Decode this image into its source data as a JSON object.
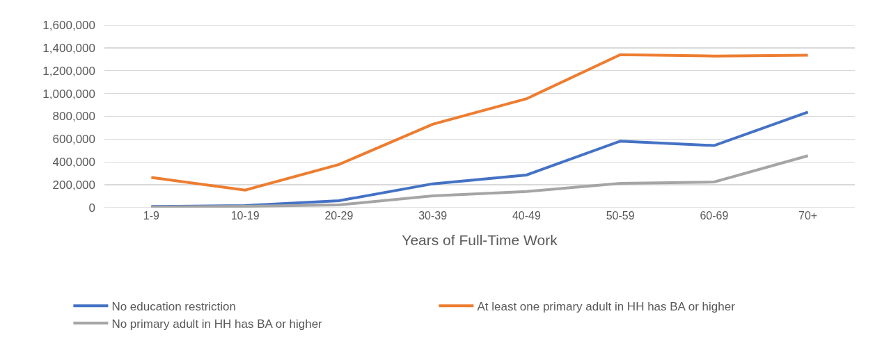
{
  "chart_data": {
    "type": "line",
    "xlabel": "Years of Full-Time Work",
    "categories": [
      "1-9",
      "10-19",
      "20-29",
      "30-39",
      "40-49",
      "50-59",
      "60-69",
      "70+"
    ],
    "series": [
      {
        "name": "No education restriction",
        "color": "#4472c4",
        "values": [
          10000,
          18000,
          61000,
          209000,
          286000,
          583000,
          544000,
          837000
        ]
      },
      {
        "name": "At least one primary adult in HH has BA or higher",
        "color": "#ed7d31",
        "values": [
          265000,
          154000,
          378000,
          731000,
          954000,
          1340000,
          1328000,
          1336000
        ]
      },
      {
        "name": "No primary adult in HH has BA or higher",
        "color": "#a5a5a5",
        "values": [
          5000,
          12000,
          24000,
          104000,
          142000,
          213000,
          225000,
          455000
        ]
      }
    ],
    "ylim": [
      0,
      1600000
    ],
    "yticks": [
      {
        "value": 0,
        "label": "0"
      },
      {
        "value": 200000,
        "label": "200,000"
      },
      {
        "value": 400000,
        "label": "400,000"
      },
      {
        "value": 600000,
        "label": "600,000"
      },
      {
        "value": 800000,
        "label": "800,000"
      },
      {
        "value": 1000000,
        "label": "1,000,000"
      },
      {
        "value": 1200000,
        "label": "1,200,000"
      },
      {
        "value": 1400000,
        "label": "1,400,000"
      },
      {
        "value": 1600000,
        "label": "1,600,000"
      }
    ],
    "grid": "y",
    "legend": "bottom",
    "marker": "none",
    "line_style": "solid"
  }
}
